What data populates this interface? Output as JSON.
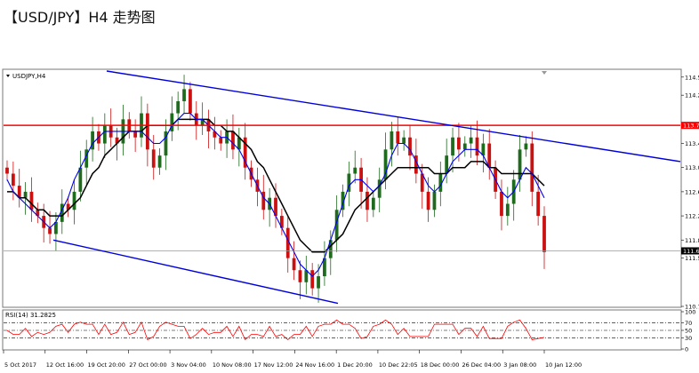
{
  "page": {
    "title": "【USD/JPY】H4 走势图"
  },
  "chart_data": {
    "type": "candlestick",
    "symbol_label": "USDJPY,H4",
    "indicator_label": "RSI(14) 31.2825",
    "x_labels": [
      "5 Oct 2017",
      "12 Oct 16:00",
      "19 Oct 20:00",
      "27 Oct 00:00",
      "3 Nov 04:00",
      "10 Nov 08:00",
      "17 Nov 12:00",
      "24 Nov 16:00",
      "1 Dec 20:00",
      "10 Dec 22:05",
      "18 Dec 00:00",
      "26 Dec 04:00",
      "3 Jan 08:00",
      "10 Jan 12:00"
    ],
    "price_ticks": [
      "114.5",
      "114.2",
      "113.4",
      "113.0",
      "112.6",
      "112.2",
      "111.8",
      "111.5",
      "110.7"
    ],
    "price_ylim": [
      110.7,
      114.6
    ],
    "current_price_label": "111.6",
    "horizontal_level_label": "113.7",
    "horizontal_level": 113.7,
    "current_price": 111.62,
    "rsi_ticks": [
      "100",
      "70",
      "50",
      "30",
      "0"
    ],
    "rsi_levels": [
      70,
      50,
      30
    ],
    "rsi_value": 31.2825,
    "close_series": [
      112.9,
      112.7,
      112.5,
      112.6,
      112.3,
      112.2,
      112.0,
      111.9,
      112.1,
      112.4,
      112.3,
      112.6,
      113.0,
      113.3,
      113.6,
      113.4,
      113.7,
      113.5,
      113.4,
      113.8,
      113.6,
      113.5,
      113.9,
      113.3,
      113.0,
      113.2,
      113.6,
      113.9,
      114.1,
      114.3,
      113.9,
      113.7,
      113.8,
      113.6,
      113.5,
      113.4,
      113.6,
      113.3,
      113.5,
      113.0,
      112.8,
      112.6,
      112.3,
      112.5,
      112.2,
      112.0,
      111.5,
      111.3,
      111.1,
      111.3,
      111.0,
      111.2,
      111.5,
      111.8,
      112.3,
      112.6,
      112.9,
      113.0,
      112.6,
      112.3,
      112.5,
      112.8,
      113.3,
      113.6,
      113.4,
      113.5,
      113.2,
      112.9,
      112.6,
      112.3,
      112.6,
      112.9,
      113.2,
      113.5,
      113.3,
      113.4,
      113.5,
      113.2,
      113.4,
      113.0,
      112.6,
      112.2,
      112.4,
      112.8,
      113.3,
      113.4,
      112.6,
      112.2,
      111.6
    ],
    "ma_fast": [
      112.8,
      112.6,
      112.5,
      112.4,
      112.3,
      112.2,
      112.1,
      112.0,
      112.1,
      112.3,
      112.5,
      112.8,
      113.0,
      113.2,
      113.4,
      113.5,
      113.6,
      113.6,
      113.6,
      113.6,
      113.6,
      113.6,
      113.6,
      113.5,
      113.4,
      113.4,
      113.5,
      113.7,
      113.8,
      113.9,
      113.9,
      113.8,
      113.8,
      113.7,
      113.6,
      113.5,
      113.5,
      113.4,
      113.3,
      113.1,
      112.9,
      112.7,
      112.5,
      112.4,
      112.2,
      112.0,
      111.8,
      111.6,
      111.4,
      111.3,
      111.2,
      111.3,
      111.5,
      111.8,
      112.1,
      112.4,
      112.7,
      112.8,
      112.8,
      112.7,
      112.6,
      112.7,
      112.9,
      113.2,
      113.4,
      113.4,
      113.3,
      113.1,
      112.9,
      112.7,
      112.6,
      112.7,
      112.9,
      113.1,
      113.2,
      113.3,
      113.3,
      113.3,
      113.2,
      113.0,
      112.8,
      112.6,
      112.5,
      112.6,
      112.8,
      113.0,
      112.9,
      112.7,
      112.5
    ],
    "ma_slow": [
      112.6,
      112.6,
      112.5,
      112.5,
      112.4,
      112.3,
      112.3,
      112.2,
      112.2,
      112.2,
      112.3,
      112.4,
      112.5,
      112.7,
      112.9,
      113.0,
      113.2,
      113.3,
      113.4,
      113.5,
      113.6,
      113.6,
      113.6,
      113.7,
      113.7,
      113.7,
      113.7,
      113.7,
      113.8,
      113.8,
      113.8,
      113.8,
      113.8,
      113.8,
      113.7,
      113.7,
      113.6,
      113.6,
      113.5,
      113.4,
      113.3,
      113.1,
      113.0,
      112.8,
      112.6,
      112.4,
      112.2,
      112.0,
      111.8,
      111.7,
      111.6,
      111.6,
      111.6,
      111.7,
      111.8,
      111.9,
      112.1,
      112.3,
      112.4,
      112.5,
      112.6,
      112.7,
      112.8,
      112.9,
      113.0,
      113.0,
      113.0,
      113.0,
      113.0,
      113.0,
      112.9,
      112.9,
      112.9,
      113.0,
      113.0,
      113.0,
      113.1,
      113.1,
      113.1,
      113.0,
      113.0,
      112.9,
      112.9,
      112.9,
      112.9,
      112.9,
      112.9,
      112.8,
      112.7
    ],
    "channel_upper": {
      "from": [
        "3 Oct 2017",
        114.6
      ],
      "to": [
        "11 Jan",
        113.1
      ]
    },
    "channel_lower": {
      "from": [
        "12 Oct",
        111.8
      ],
      "to": [
        "29 Nov",
        110.7
      ]
    },
    "series_colors": {
      "up": "#1e6b1e",
      "down": "#cc1010",
      "ma_fast": "#0000ee",
      "ma_slow": "#000000",
      "channel": "#0000dd",
      "level": "#ff0000",
      "rsi": "#ff0000"
    }
  }
}
